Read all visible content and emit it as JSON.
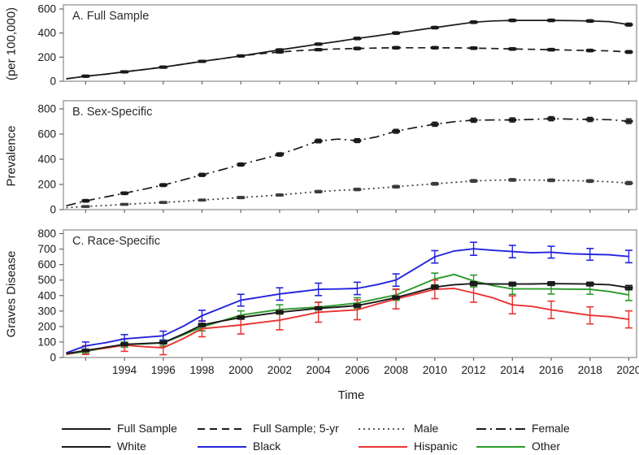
{
  "figure": {
    "x_axis_label": "Time",
    "axis_color": "#8c8c8c",
    "tick_color": "#666666"
  },
  "chart_data": [
    {
      "type": "line",
      "title": "A. Full Sample",
      "ylabel": "(per 100,000)",
      "xlabel": "",
      "ylim": [
        0,
        600
      ],
      "yticks": [
        0,
        200,
        400,
        600
      ],
      "xlim": [
        1991,
        2020
      ],
      "x": [
        1991,
        1992,
        1993,
        1994,
        1995,
        1996,
        1997,
        1998,
        1999,
        2000,
        2001,
        2002,
        2003,
        2004,
        2005,
        2006,
        2007,
        2008,
        2009,
        2010,
        2011,
        2012,
        2013,
        2014,
        2015,
        2016,
        2017,
        2018,
        2019,
        2020
      ],
      "err_years": [
        1992,
        1994,
        1996,
        1998,
        2000,
        2002,
        2004,
        2006,
        2008,
        2010,
        2012,
        2014,
        2016,
        2018,
        2020
      ],
      "series": [
        {
          "name": "Full Sample",
          "color": "#1a1a1a",
          "style": "solid",
          "marker": "dash",
          "values": [
            20,
            42,
            58,
            78,
            97,
            117,
            141,
            165,
            187,
            210,
            235,
            260,
            284,
            308,
            330,
            355,
            377,
            400,
            422,
            445,
            468,
            490,
            500,
            505,
            505,
            505,
            503,
            500,
            495,
            470
          ],
          "errors": [
            8,
            8,
            8,
            8,
            8,
            9,
            9,
            10,
            10,
            10,
            10,
            10,
            10,
            10,
            12
          ]
        },
        {
          "name": "Full Sample; 5-yr",
          "color": "#1a1a1a",
          "style": "dashed",
          "marker": "dash",
          "values": [
            20,
            42,
            58,
            78,
            97,
            117,
            141,
            165,
            187,
            210,
            228,
            243,
            254,
            262,
            268,
            272,
            276,
            278,
            278,
            278,
            277,
            275,
            272,
            268,
            265,
            262,
            258,
            255,
            252,
            243
          ],
          "errors": [
            8,
            8,
            8,
            8,
            8,
            9,
            9,
            10,
            10,
            10,
            10,
            10,
            10,
            10,
            11
          ]
        }
      ]
    },
    {
      "type": "line",
      "title": "B. Sex-Specific",
      "ylabel": "Prevalence",
      "xlabel": "",
      "ylim": [
        0,
        800
      ],
      "yticks": [
        0,
        200,
        400,
        600,
        800
      ],
      "xlim": [
        1991,
        2020
      ],
      "x": [
        1991,
        1992,
        1993,
        1994,
        1995,
        1996,
        1997,
        1998,
        1999,
        2000,
        2001,
        2002,
        2003,
        2004,
        2005,
        2006,
        2007,
        2008,
        2009,
        2010,
        2011,
        2012,
        2013,
        2014,
        2015,
        2016,
        2017,
        2018,
        2019,
        2020
      ],
      "err_years": [
        1992,
        1994,
        1996,
        1998,
        2000,
        2002,
        2004,
        2006,
        2008,
        2010,
        2012,
        2014,
        2016,
        2018,
        2020
      ],
      "series": [
        {
          "name": "Male",
          "color": "#3c3c3c",
          "style": "dotted",
          "marker": "dash",
          "values": [
            15,
            25,
            32,
            42,
            50,
            57,
            66,
            76,
            86,
            96,
            106,
            116,
            130,
            143,
            152,
            160,
            170,
            182,
            194,
            205,
            216,
            228,
            233,
            236,
            235,
            233,
            230,
            227,
            221,
            211
          ],
          "errors": [
            6,
            6,
            7,
            7,
            8,
            8,
            9,
            9,
            10,
            10,
            10,
            10,
            10,
            10,
            12
          ]
        },
        {
          "name": "Female",
          "color": "#1a1a1a",
          "style": "dashdot",
          "marker": "dash",
          "values": [
            30,
            70,
            100,
            130,
            162,
            195,
            235,
            276,
            316,
            358,
            398,
            438,
            490,
            545,
            560,
            548,
            578,
            622,
            652,
            678,
            698,
            710,
            712,
            712,
            716,
            722,
            719,
            716,
            714,
            702
          ],
          "errors": [
            10,
            10,
            11,
            12,
            12,
            13,
            14,
            15,
            15,
            16,
            16,
            16,
            16,
            16,
            18
          ]
        }
      ]
    },
    {
      "type": "line",
      "title": "C. Race-Specific",
      "ylabel": "Graves Disease",
      "xlabel": "Time",
      "ylim": [
        0,
        800
      ],
      "yticks": [
        0,
        100,
        200,
        300,
        400,
        500,
        600,
        700,
        800
      ],
      "xlim": [
        1991,
        2020
      ],
      "xticklabels": [
        "1994",
        "1996",
        "1998",
        "2000",
        "2002",
        "2004",
        "2006",
        "2008",
        "2010",
        "2012",
        "2014",
        "2016",
        "2018",
        "2020"
      ],
      "x": [
        1991,
        1992,
        1993,
        1994,
        1995,
        1996,
        1997,
        1998,
        1999,
        2000,
        2001,
        2002,
        2003,
        2004,
        2005,
        2006,
        2007,
        2008,
        2009,
        2010,
        2011,
        2012,
        2013,
        2014,
        2015,
        2016,
        2017,
        2018,
        2019,
        2020
      ],
      "err_years": [
        1992,
        1994,
        1996,
        1998,
        2000,
        2002,
        2004,
        2006,
        2008,
        2010,
        2012,
        2014,
        2016,
        2018,
        2020
      ],
      "series": [
        {
          "name": "Other",
          "color": "#2a9a2a",
          "style": "solid",
          "marker": "none",
          "values": [
            20,
            40,
            62,
            83,
            88,
            94,
            145,
            196,
            235,
            274,
            292,
            310,
            318,
            325,
            338,
            352,
            378,
            404,
            455,
            507,
            536,
            494,
            464,
            443,
            443,
            443,
            441,
            440,
            426,
            404
          ],
          "errors": [
            14,
            17,
            20,
            24,
            27,
            30,
            32,
            34,
            35,
            38,
            38,
            35,
            33,
            32,
            36
          ]
        },
        {
          "name": "Hispanic",
          "color": "#e93232",
          "style": "solid",
          "marker": "none",
          "values": [
            20,
            48,
            60,
            80,
            70,
            63,
            120,
            186,
            198,
            210,
            226,
            241,
            266,
            292,
            300,
            308,
            344,
            378,
            408,
            440,
            446,
            417,
            385,
            340,
            330,
            308,
            290,
            272,
            264,
            246
          ],
          "errors": [
            28,
            40,
            45,
            52,
            58,
            62,
            64,
            64,
            64,
            60,
            60,
            58,
            56,
            55,
            55
          ]
        },
        {
          "name": "Black",
          "color": "#2323dd",
          "style": "solid",
          "marker": "none",
          "values": [
            30,
            75,
            95,
            120,
            130,
            140,
            200,
            270,
            320,
            370,
            390,
            410,
            425,
            440,
            442,
            446,
            470,
            500,
            575,
            650,
            688,
            702,
            692,
            684,
            676,
            680,
            670,
            666,
            663,
            652
          ],
          "errors": [
            25,
            28,
            30,
            35,
            38,
            40,
            40,
            40,
            40,
            40,
            42,
            40,
            38,
            38,
            40
          ]
        },
        {
          "name": "White",
          "color": "#1a1a1a",
          "style": "solid",
          "marker": "dash",
          "values": [
            25,
            45,
            65,
            85,
            90,
            96,
            150,
            210,
            235,
            258,
            275,
            292,
            305,
            318,
            325,
            335,
            360,
            387,
            420,
            455,
            470,
            477,
            475,
            474,
            475,
            477,
            476,
            474,
            470,
            451
          ],
          "errors": [
            8,
            9,
            9,
            10,
            10,
            10,
            10,
            10,
            10,
            12,
            12,
            12,
            12,
            12,
            14
          ]
        }
      ]
    }
  ],
  "legend": {
    "rows": [
      {
        "items": [
          {
            "label": "Full Sample",
            "color": "#1a1a1a",
            "style": "solid"
          },
          {
            "label": "Full Sample; 5-yr",
            "color": "#1a1a1a",
            "style": "dashed"
          },
          {
            "label": "Male",
            "color": "#555555",
            "style": "dotted"
          },
          {
            "label": "Female",
            "color": "#1a1a1a",
            "style": "dashdot"
          }
        ]
      },
      {
        "items": [
          {
            "label": "White",
            "color": "#1a1a1a",
            "style": "solid"
          },
          {
            "label": "Black",
            "color": "#2323dd",
            "style": "solid"
          },
          {
            "label": "Hispanic",
            "color": "#e93232",
            "style": "solid"
          },
          {
            "label": "Other",
            "color": "#2a9a2a",
            "style": "solid"
          }
        ]
      }
    ]
  }
}
